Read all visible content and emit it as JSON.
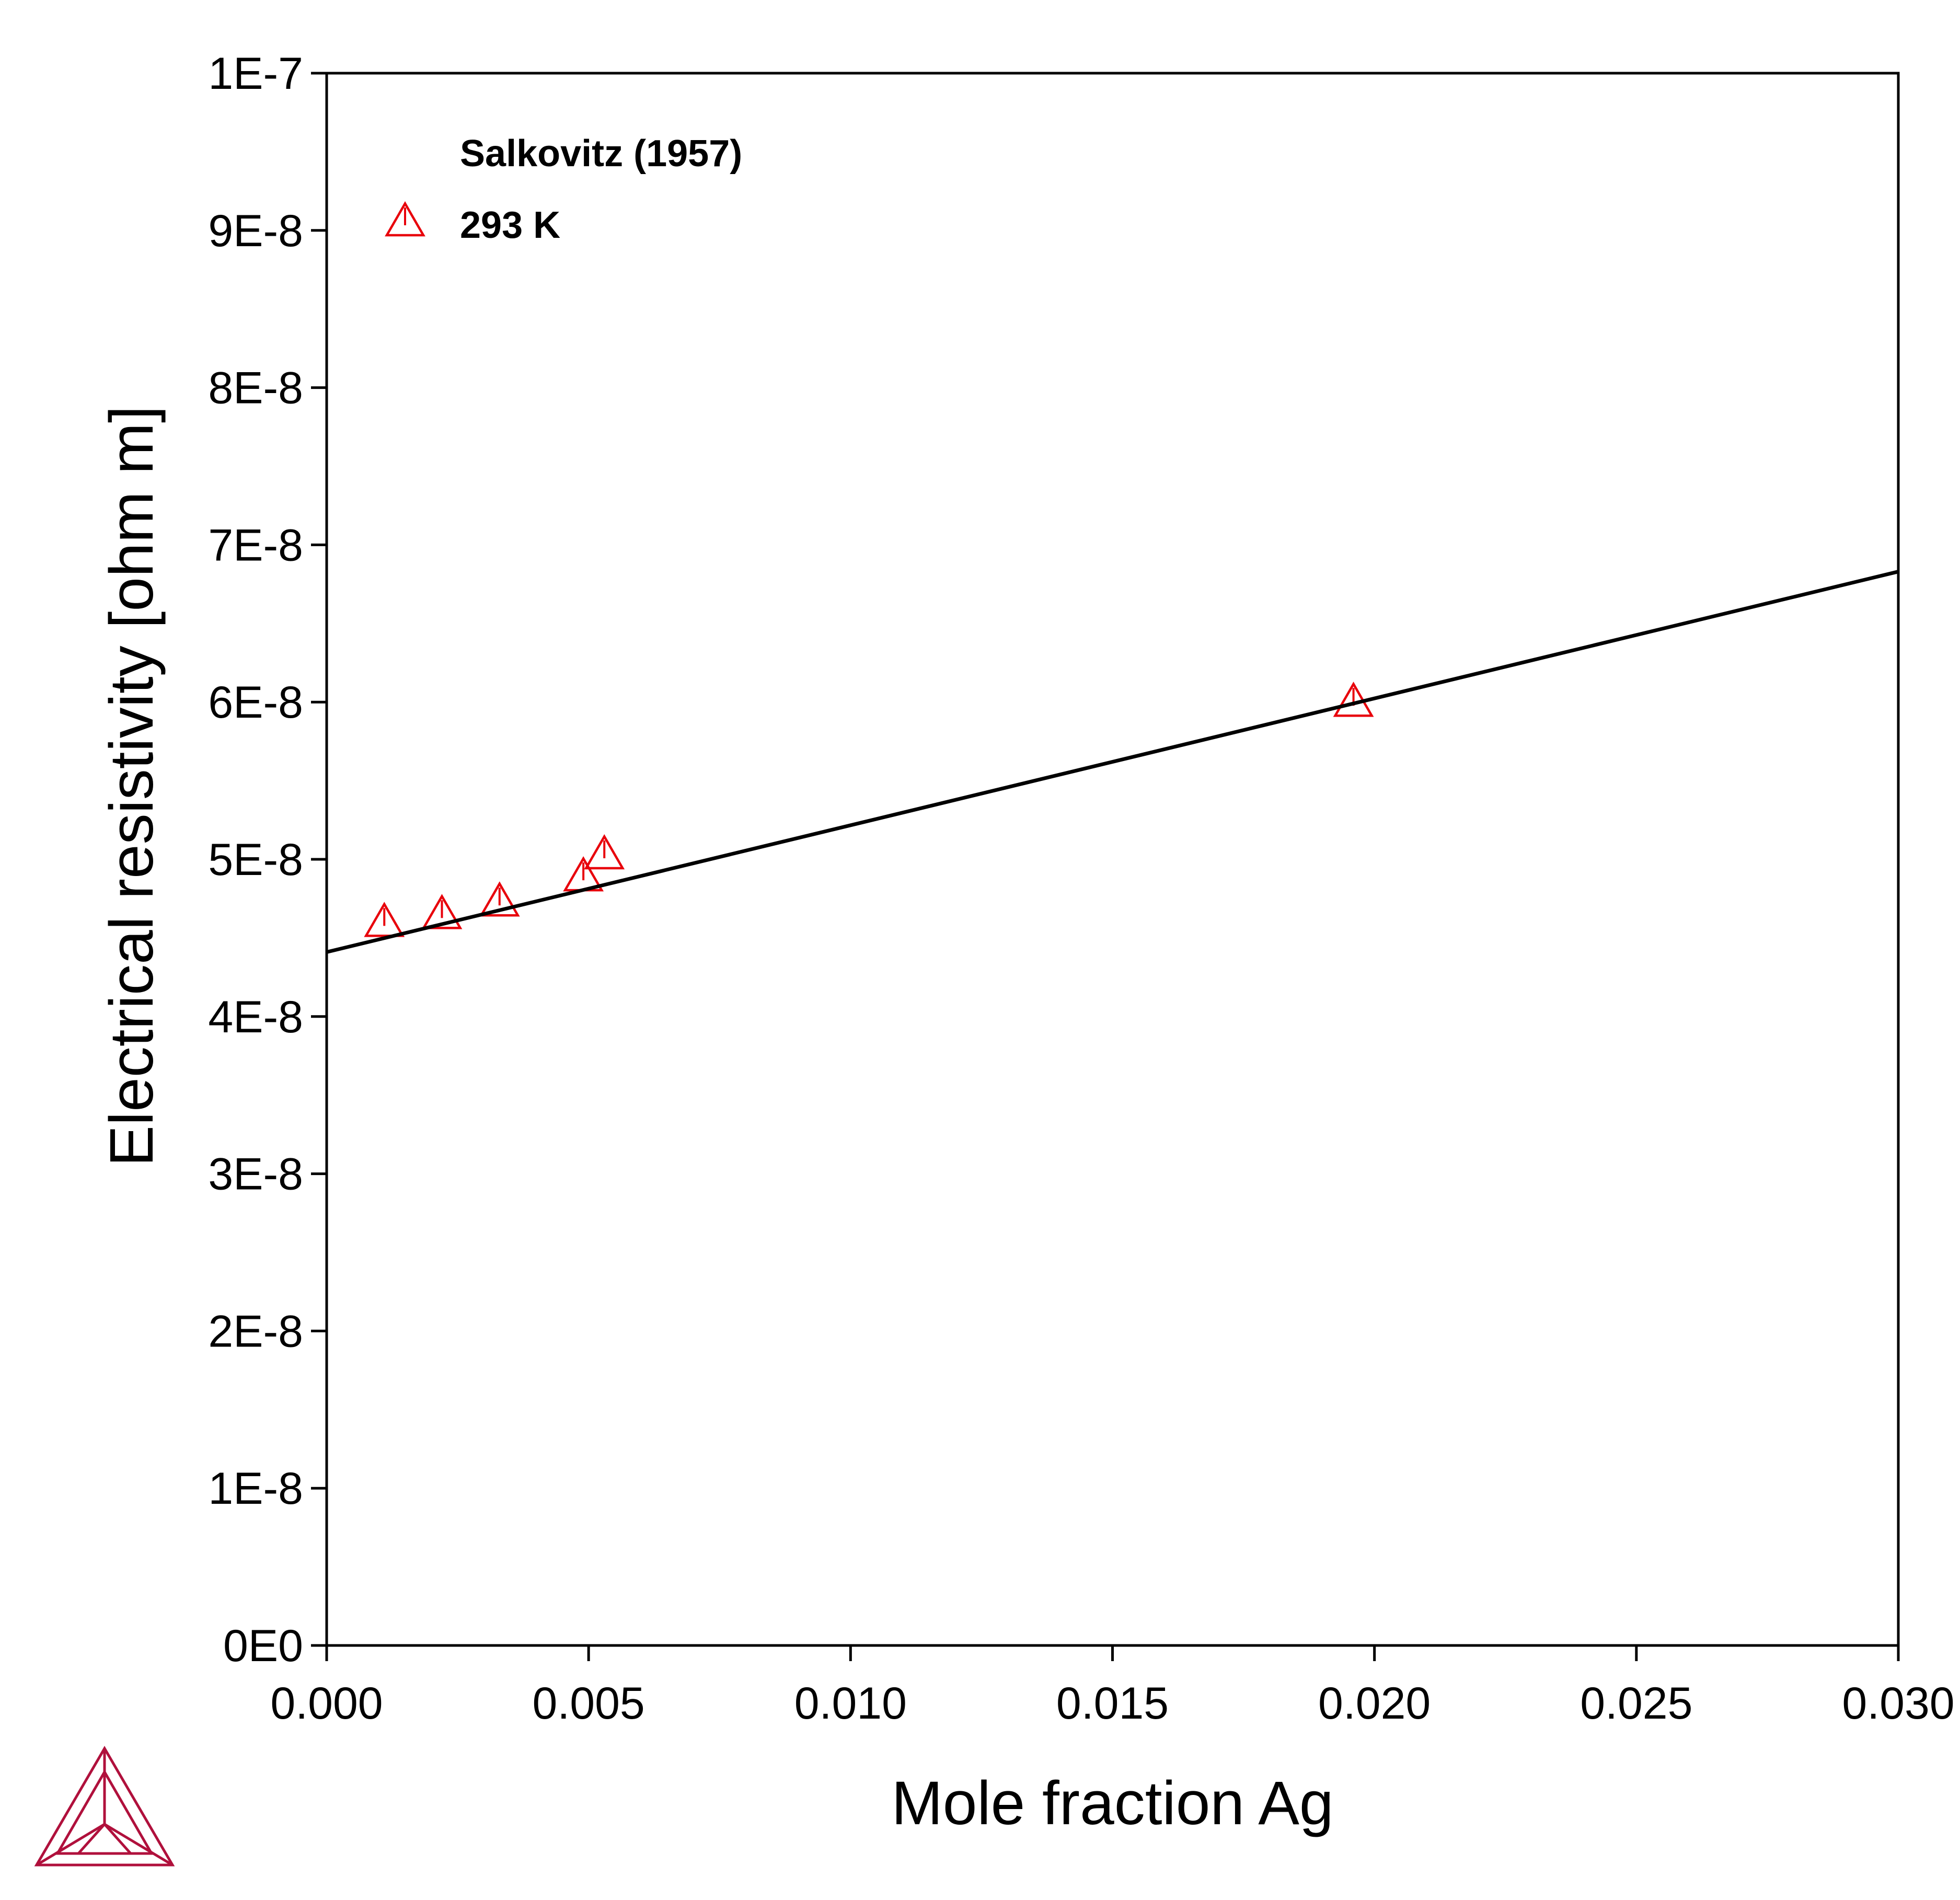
{
  "chart_data": {
    "type": "scatter",
    "title": "",
    "xlabel": "Mole fraction Ag",
    "ylabel": "Electrical resistivity [ohm m]",
    "xlim": [
      0,
      0.03
    ],
    "ylim": [
      0,
      1e-07
    ],
    "x_ticks": [
      0,
      0.005,
      0.01,
      0.015,
      0.02,
      0.025,
      0.03
    ],
    "x_tick_labels": [
      "0.000",
      "0.005",
      "0.010",
      "0.015",
      "0.020",
      "0.025",
      "0.030"
    ],
    "y_ticks": [
      0,
      1e-08,
      2e-08,
      3e-08,
      4e-08,
      5e-08,
      6e-08,
      7e-08,
      8e-08,
      9e-08,
      1e-07
    ],
    "y_tick_labels": [
      "0E0",
      "1E-8",
      "2E-8",
      "3E-8",
      "4E-8",
      "5E-8",
      "6E-8",
      "7E-8",
      "8E-8",
      "9E-8",
      "1E-7"
    ],
    "grid": false,
    "legend": {
      "placement": "top-left",
      "heading": "Salkovitz (1957)",
      "entries": [
        {
          "label": "293 K",
          "marker": "triangle",
          "color": "#e8000b"
        }
      ]
    },
    "series": [
      {
        "name": "293 K",
        "kind": "scatter",
        "marker": "triangle",
        "color": "#e8000b",
        "x": [
          0.0011,
          0.0022,
          0.0033,
          0.0049,
          0.0053,
          0.0196
        ],
        "y": [
          4.59e-08,
          4.64e-08,
          4.72e-08,
          4.88e-08,
          5.02e-08,
          5.99e-08
        ]
      },
      {
        "kind": "line",
        "color": "#000000",
        "x": [
          0,
          0.03
        ],
        "y": [
          4.41e-08,
          6.83e-08
        ]
      }
    ]
  },
  "logo": {
    "name": "thermo-calc-logo",
    "color": "#b0103c"
  }
}
